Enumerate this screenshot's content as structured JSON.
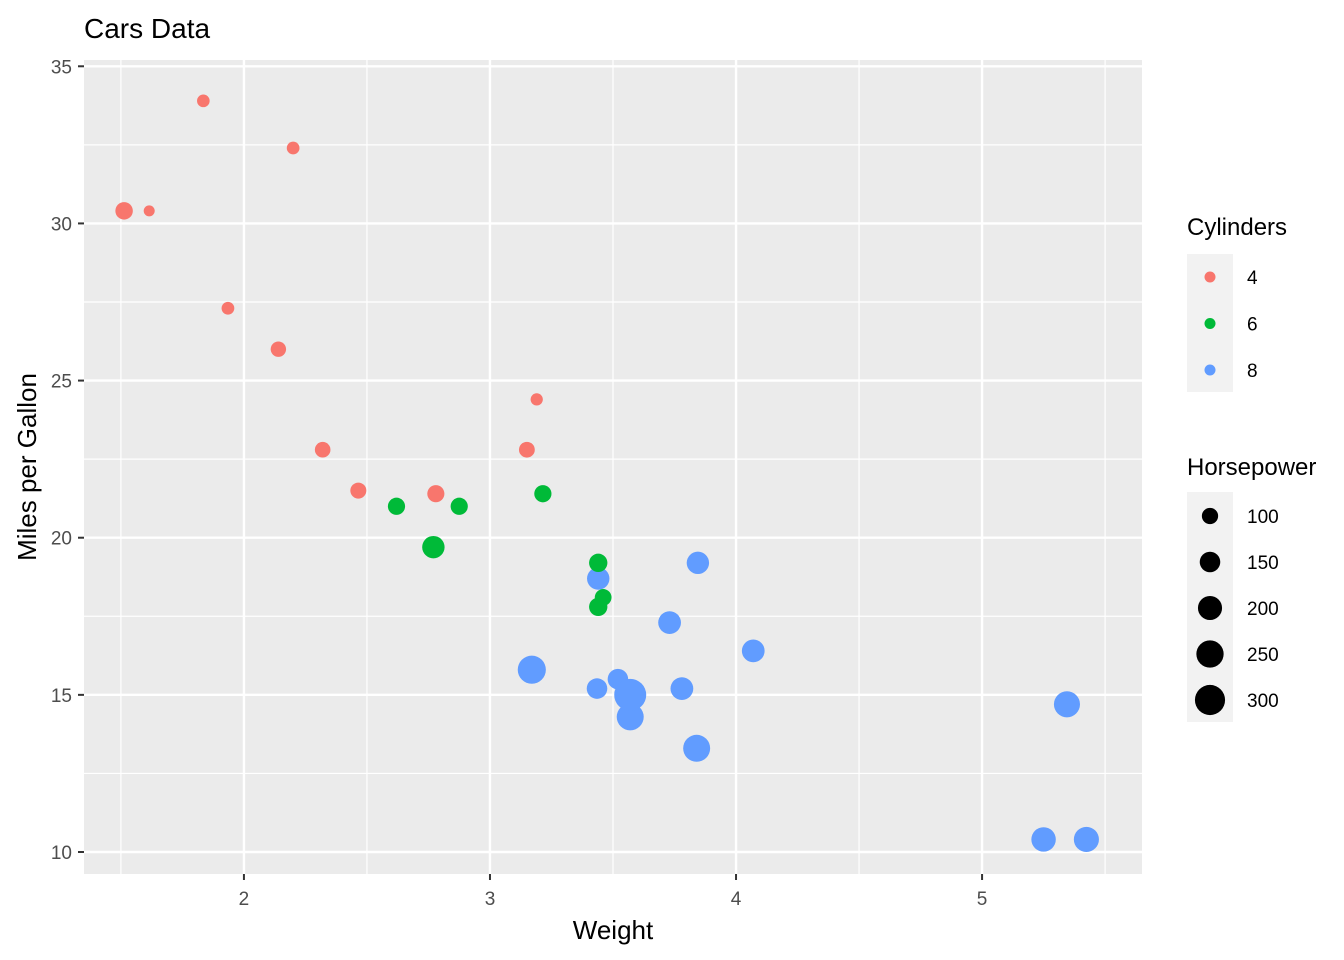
{
  "chart_data": {
    "type": "scatter",
    "title": "Cars Data",
    "xlabel": "Weight",
    "ylabel": "Miles per Gallon",
    "xlim": [
      1.35,
      5.65
    ],
    "ylim": [
      9.3,
      35.2
    ],
    "x_ticks": [
      2,
      3,
      4,
      5
    ],
    "y_ticks": [
      10,
      15,
      20,
      25,
      30,
      35
    ],
    "grid": true,
    "legend_position": "right",
    "color_legend": {
      "title": "Cylinders",
      "entries": [
        {
          "label": "4",
          "color": "#F8766D"
        },
        {
          "label": "6",
          "color": "#00BA38"
        },
        {
          "label": "8",
          "color": "#619CFF"
        }
      ]
    },
    "size_legend": {
      "title": "Horsepower",
      "entries": [
        {
          "label": "100",
          "value": 100
        },
        {
          "label": "150",
          "value": 150
        },
        {
          "label": "200",
          "value": 200
        },
        {
          "label": "250",
          "value": 250
        },
        {
          "label": "300",
          "value": 300
        }
      ]
    },
    "points": [
      {
        "x": 2.62,
        "y": 21.0,
        "cyl": "6",
        "hp": 110
      },
      {
        "x": 2.875,
        "y": 21.0,
        "cyl": "6",
        "hp": 110
      },
      {
        "x": 2.32,
        "y": 22.8,
        "cyl": "4",
        "hp": 93
      },
      {
        "x": 3.215,
        "y": 21.4,
        "cyl": "6",
        "hp": 110
      },
      {
        "x": 3.44,
        "y": 18.7,
        "cyl": "8",
        "hp": 175
      },
      {
        "x": 3.46,
        "y": 18.1,
        "cyl": "6",
        "hp": 105
      },
      {
        "x": 3.57,
        "y": 14.3,
        "cyl": "8",
        "hp": 245
      },
      {
        "x": 3.19,
        "y": 24.4,
        "cyl": "4",
        "hp": 62
      },
      {
        "x": 3.15,
        "y": 22.8,
        "cyl": "4",
        "hp": 95
      },
      {
        "x": 3.44,
        "y": 19.2,
        "cyl": "6",
        "hp": 123
      },
      {
        "x": 3.44,
        "y": 17.8,
        "cyl": "6",
        "hp": 123
      },
      {
        "x": 4.07,
        "y": 16.4,
        "cyl": "8",
        "hp": 180
      },
      {
        "x": 3.73,
        "y": 17.3,
        "cyl": "8",
        "hp": 180
      },
      {
        "x": 3.78,
        "y": 15.2,
        "cyl": "8",
        "hp": 180
      },
      {
        "x": 5.25,
        "y": 10.4,
        "cyl": "8",
        "hp": 205
      },
      {
        "x": 5.424,
        "y": 10.4,
        "cyl": "8",
        "hp": 215
      },
      {
        "x": 5.345,
        "y": 14.7,
        "cyl": "8",
        "hp": 230
      },
      {
        "x": 2.2,
        "y": 32.4,
        "cyl": "4",
        "hp": 66
      },
      {
        "x": 1.615,
        "y": 30.4,
        "cyl": "4",
        "hp": 52
      },
      {
        "x": 1.835,
        "y": 33.9,
        "cyl": "4",
        "hp": 65
      },
      {
        "x": 2.465,
        "y": 21.5,
        "cyl": "4",
        "hp": 97
      },
      {
        "x": 3.52,
        "y": 15.5,
        "cyl": "8",
        "hp": 150
      },
      {
        "x": 3.435,
        "y": 15.2,
        "cyl": "8",
        "hp": 150
      },
      {
        "x": 3.84,
        "y": 13.3,
        "cyl": "8",
        "hp": 245
      },
      {
        "x": 3.845,
        "y": 19.2,
        "cyl": "8",
        "hp": 175
      },
      {
        "x": 1.935,
        "y": 27.3,
        "cyl": "4",
        "hp": 66
      },
      {
        "x": 2.14,
        "y": 26.0,
        "cyl": "4",
        "hp": 91
      },
      {
        "x": 1.513,
        "y": 30.4,
        "cyl": "4",
        "hp": 113
      },
      {
        "x": 3.17,
        "y": 15.8,
        "cyl": "8",
        "hp": 264
      },
      {
        "x": 2.77,
        "y": 19.7,
        "cyl": "6",
        "hp": 175
      },
      {
        "x": 3.57,
        "y": 15.0,
        "cyl": "8",
        "hp": 335
      },
      {
        "x": 2.78,
        "y": 21.4,
        "cyl": "4",
        "hp": 109
      }
    ]
  }
}
